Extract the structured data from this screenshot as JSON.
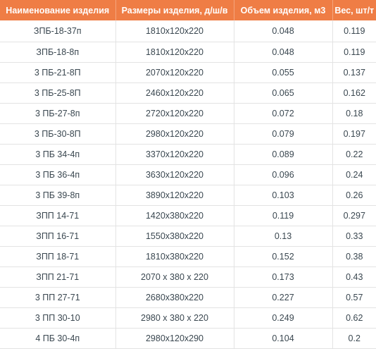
{
  "table": {
    "headers": [
      "Наименование изделия",
      "Размеры изделия, д/ш/в",
      "Объем изделия, м3",
      "Вес, шт/т"
    ],
    "rows": [
      [
        "ЗПБ-18-37п",
        "1810х120х220",
        "0.048",
        "0.119"
      ],
      [
        "ЗПБ-18-8п",
        "1810х120х220",
        "0.048",
        "0.119"
      ],
      [
        "3 ПБ-21-8П",
        "2070х120х220",
        "0.055",
        "0.137"
      ],
      [
        "3 ПБ-25-8П",
        "2460х120х220",
        "0.065",
        "0.162"
      ],
      [
        "3 ПБ-27-8п",
        "2720х120х220",
        "0.072",
        "0.18"
      ],
      [
        "3 ПБ-30-8П",
        "2980х120х220",
        "0.079",
        "0.197"
      ],
      [
        "3 ПБ 34-4п",
        "3370х120х220",
        "0.089",
        "0.22"
      ],
      [
        "3 ПБ 36-4п",
        "3630х120х220",
        "0.096",
        "0.24"
      ],
      [
        "3 ПБ 39-8п",
        "3890х120х220",
        "0.103",
        "0.26"
      ],
      [
        "ЗПП 14-71",
        "1420х380х220",
        "0.119",
        "0.297"
      ],
      [
        "ЗПП 16-71",
        "1550х380х220",
        "0.13",
        "0.33"
      ],
      [
        "ЗПП 18-71",
        "1810х380х220",
        "0.152",
        "0.38"
      ],
      [
        "ЗПП 21-71",
        "2070 х 380 х 220",
        "0.173",
        "0.43"
      ],
      [
        "3 ПП 27-71",
        "2680х380х220",
        "0.227",
        "0.57"
      ],
      [
        "3 ПП 30-10",
        "2980 х 380 х 220",
        "0.249",
        "0.62"
      ],
      [
        "4 ПБ 30-4п",
        "2980х120х290",
        "0.104",
        "0.2"
      ]
    ]
  }
}
